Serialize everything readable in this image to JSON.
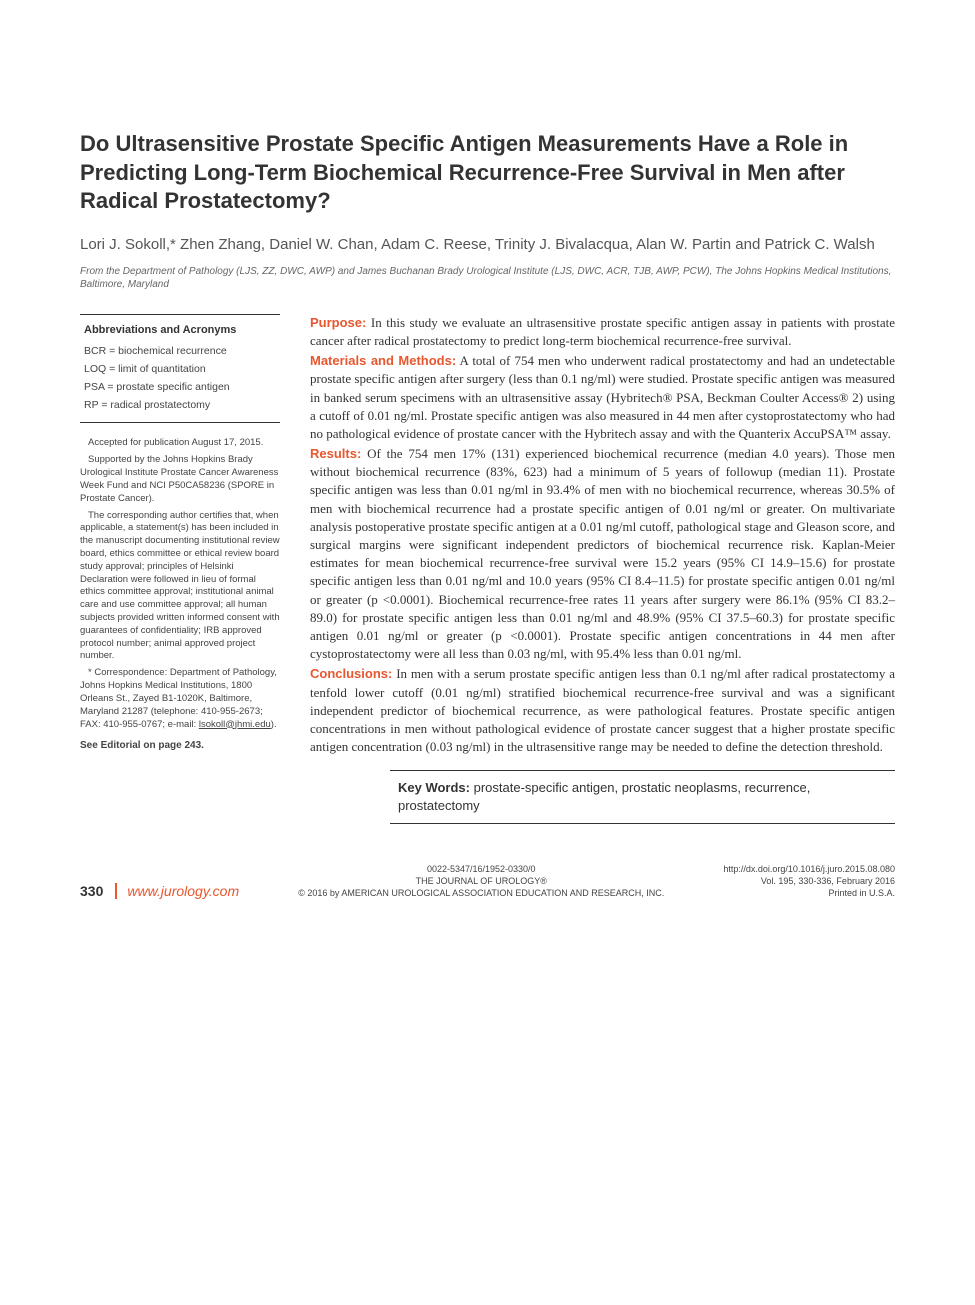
{
  "title": "Do Ultrasensitive Prostate Specific Antigen Measurements Have a Role in Predicting Long-Term Biochemical Recurrence-Free Survival in Men after Radical Prostatectomy?",
  "authors": "Lori J. Sokoll,* Zhen Zhang, Daniel W. Chan, Adam C. Reese, Trinity J. Bivalacqua, Alan W. Partin and Patrick C. Walsh",
  "affiliation": "From the Department of Pathology (LJS, ZZ, DWC, AWP) and James Buchanan Brady Urological Institute (LJS, DWC, ACR, TJB, AWP, PCW), The Johns Hopkins Medical Institutions, Baltimore, Maryland",
  "abbr": {
    "title": "Abbreviations and Acronyms",
    "items": [
      "BCR = biochemical recurrence",
      "LOQ = limit of quantitation",
      "PSA = prostate specific antigen",
      "RP = radical prostatectomy"
    ]
  },
  "notes": {
    "accepted": "Accepted for publication August 17, 2015.",
    "support": "Supported by the Johns Hopkins Brady Urological Institute Prostate Cancer Awareness Week Fund and NCI P50CA58236 (SPORE in Prostate Cancer).",
    "ethics": "The corresponding author certifies that, when applicable, a statement(s) has been included in the manuscript documenting institutional review board, ethics committee or ethical review board study approval; principles of Helsinki Declaration were followed in lieu of formal ethics committee approval; institutional animal care and use committee approval; all human subjects provided written informed consent with guarantees of confidentiality; IRB approved protocol number; animal approved project number.",
    "correspondence": "* Correspondence: Department of Pathology, Johns Hopkins Medical Institutions, 1800 Orleans St., Zayed B1-1020K, Baltimore, Maryland 21287 (telephone: 410-955-2673; FAX: 410-955-0767; e-mail: ",
    "email": "lsokoll@jhmi.edu",
    "correspondence_end": ").",
    "editorial": "See Editorial on page 243."
  },
  "abstract": {
    "purpose_label": "Purpose:",
    "purpose": " In this study we evaluate an ultrasensitive prostate specific antigen assay in patients with prostate cancer after radical prostatectomy to predict long-term biochemical recurrence-free survival.",
    "methods_label": "Materials and Methods:",
    "methods": " A total of 754 men who underwent radical prostatectomy and had an undetectable prostate specific antigen after surgery (less than 0.1 ng/ml) were studied. Prostate specific antigen was measured in banked serum specimens with an ultrasensitive assay (Hybritech® PSA, Beckman Coulter Access® 2) using a cutoff of 0.01 ng/ml. Prostate specific antigen was also measured in 44 men after cystoprostatectomy who had no pathological evidence of prostate cancer with the Hybritech assay and with the Quanterix AccuPSA™ assay.",
    "results_label": "Results:",
    "results": " Of the 754 men 17% (131) experienced biochemical recurrence (median 4.0 years). Those men without biochemical recurrence (83%, 623) had a minimum of 5 years of followup (median 11). Prostate specific antigen was less than 0.01 ng/ml in 93.4% of men with no biochemical recurrence, whereas 30.5% of men with biochemical recurrence had a prostate specific antigen of 0.01 ng/ml or greater. On multivariate analysis postoperative prostate specific antigen at a 0.01 ng/ml cutoff, pathological stage and Gleason score, and surgical margins were significant independent predictors of biochemical recurrence risk. Kaplan-Meier estimates for mean biochemical recurrence-free survival were 15.2 years (95% CI 14.9–15.6) for prostate specific antigen less than 0.01 ng/ml and 10.0 years (95% CI 8.4–11.5) for prostate specific antigen 0.01 ng/ml or greater (p <0.0001). Biochemical recurrence-free rates 11 years after surgery were 86.1% (95% CI 83.2–89.0) for prostate specific antigen less than 0.01 ng/ml and 48.9% (95% CI 37.5–60.3) for prostate specific antigen 0.01 ng/ml or greater (p <0.0001). Prostate specific antigen concentrations in 44 men after cystoprostatectomy were all less than 0.03 ng/ml, with 95.4% less than 0.01 ng/ml.",
    "conclusions_label": "Conclusions:",
    "conclusions": " In men with a serum prostate specific antigen less than 0.1 ng/ml after radical prostatectomy a tenfold lower cutoff (0.01 ng/ml) stratified biochemical recurrence-free survival and was a significant independent predictor of biochemical recurrence, as were pathological features. Prostate specific antigen concentrations in men without pathological evidence of prostate cancer suggest that a higher prostate specific antigen concentration (0.03 ng/ml) in the ultrasensitive range may be needed to define the detection threshold."
  },
  "keywords": {
    "label": "Key Words:",
    "text": " prostate-specific antigen, prostatic neoplasms, recurrence, prostatectomy"
  },
  "footer": {
    "page": "330",
    "url": "www.jurology.com",
    "issn": "0022-5347/16/1952-0330/0",
    "journal": "THE JOURNAL OF UROLOGY®",
    "copyright": "© 2016 by AMERICAN UROLOGICAL ASSOCIATION EDUCATION AND RESEARCH, INC.",
    "doi": "http://dx.doi.org/10.1016/j.juro.2015.08.080",
    "volume": "Vol. 195, 330-336, February 2016",
    "printed": "Printed in U.S.A."
  },
  "colors": {
    "accent": "#e8572e",
    "text": "#333333",
    "background": "#ffffff"
  }
}
